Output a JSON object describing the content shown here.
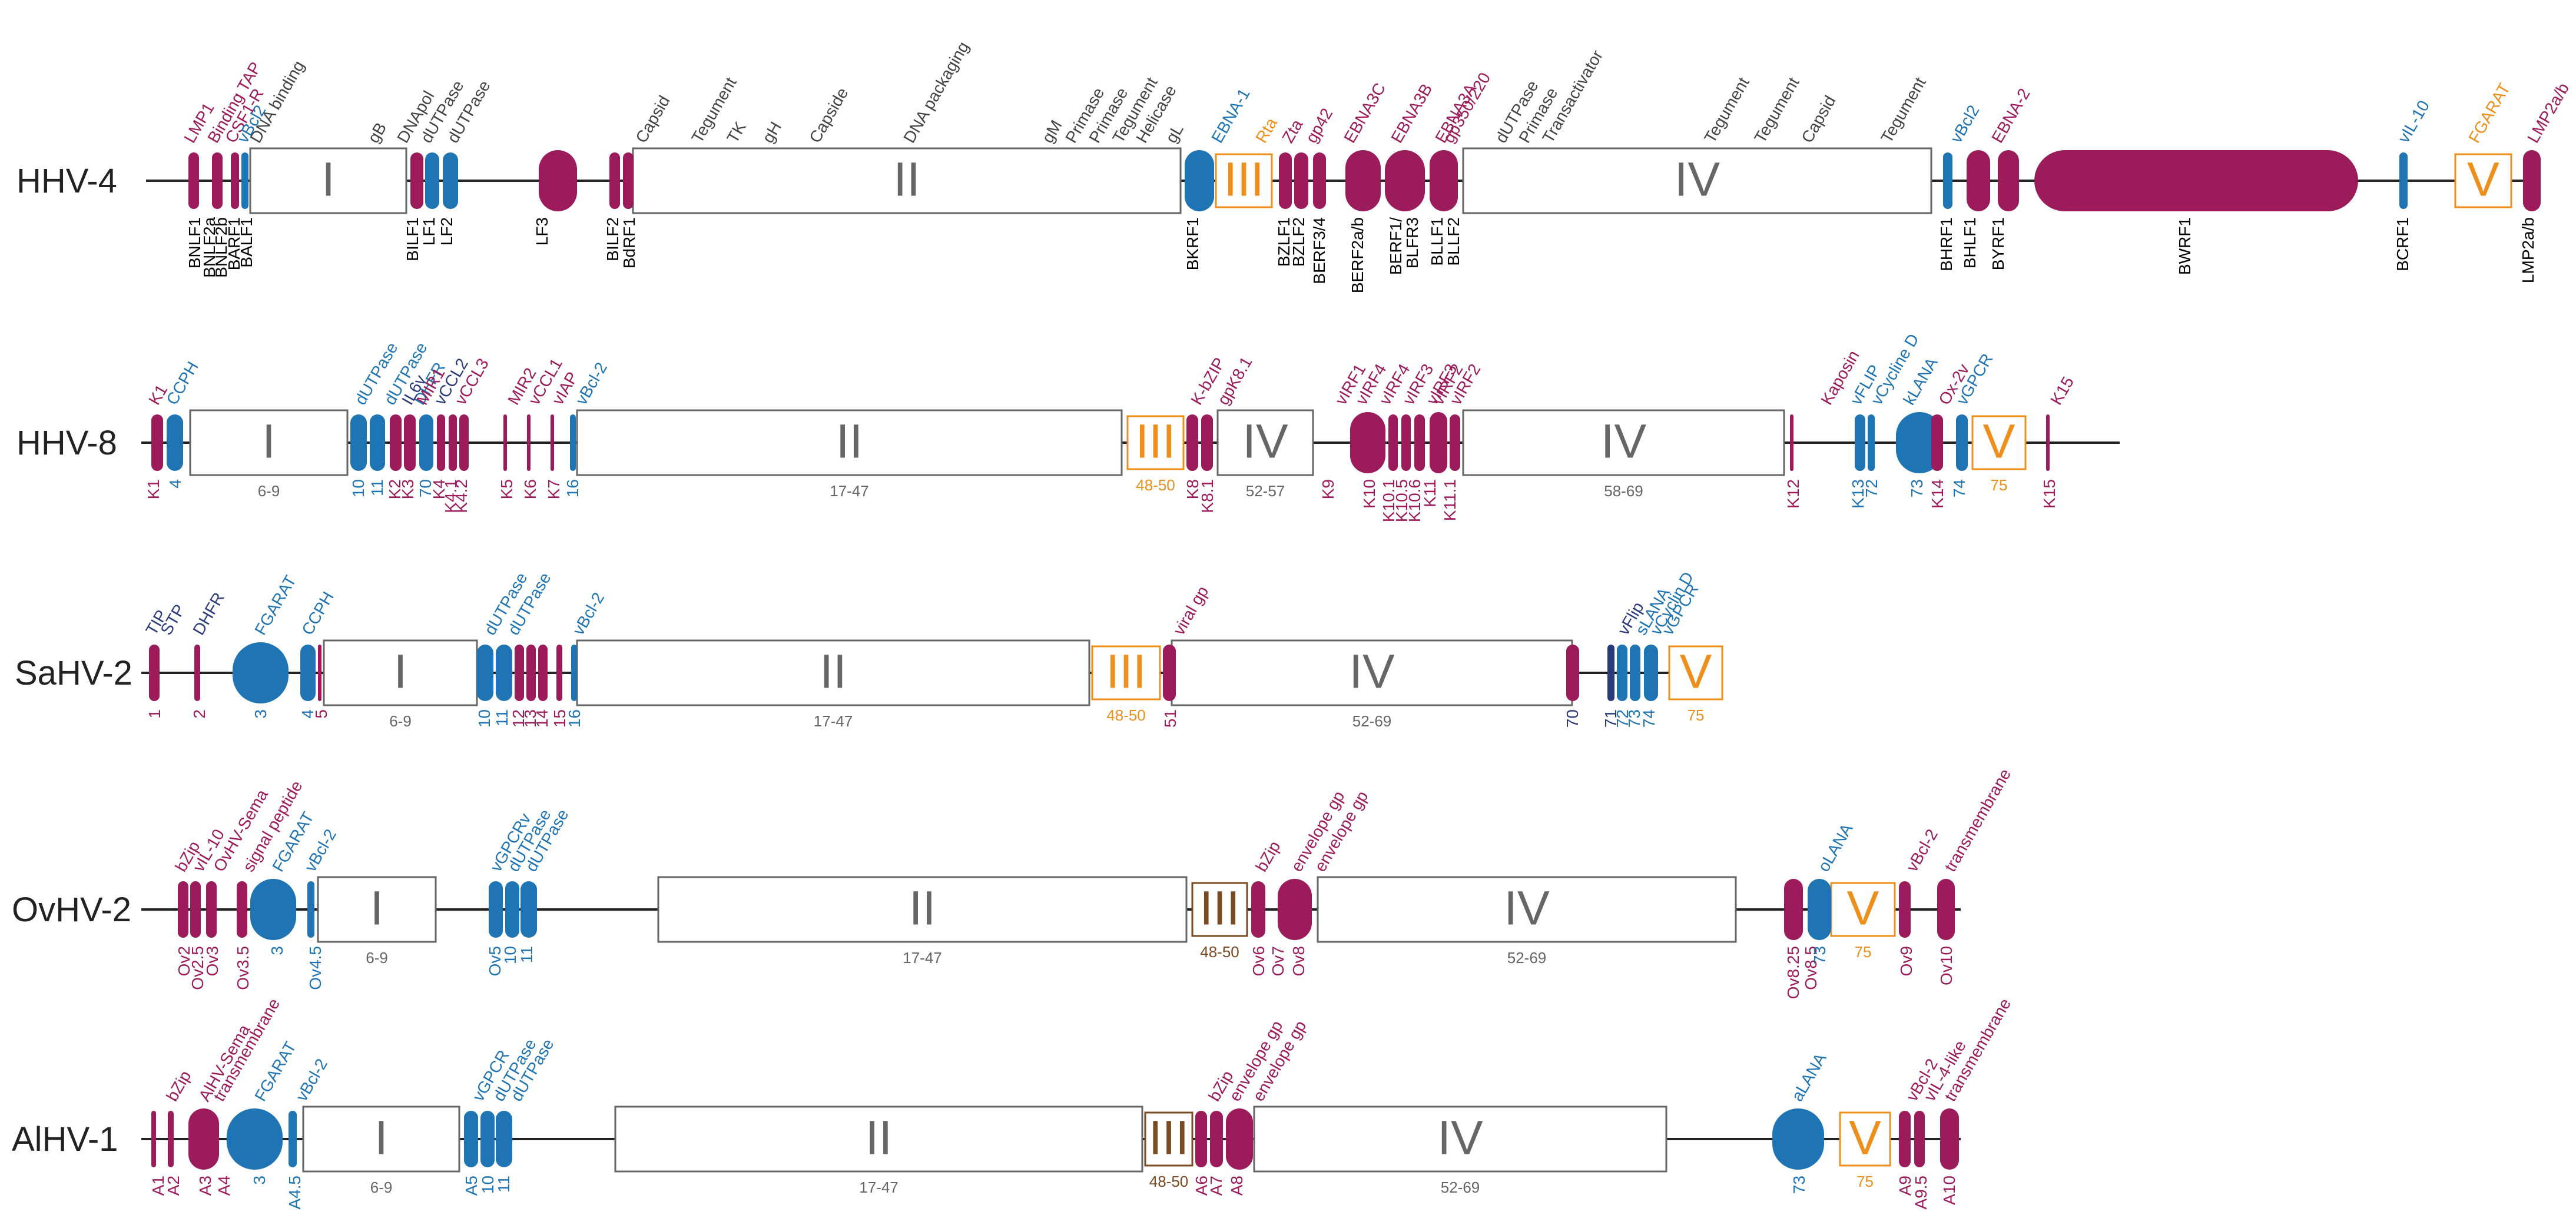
{
  "colors": {
    "magenta": "#9c1b5a",
    "blue": "#1f74b3",
    "orange": "#ee8f1b",
    "brown": "#7a4a22",
    "gray": "#666666",
    "line": "#222222",
    "navy": "#2a3a7a"
  },
  "rows": [
    {
      "name": "HHV-4",
      "blocks": [
        {
          "label": "I",
          "range": ""
        },
        {
          "label": "II",
          "range": ""
        },
        {
          "label": "III",
          "range": ""
        },
        {
          "label": "IV",
          "range": ""
        },
        {
          "label": "V",
          "range": ""
        }
      ],
      "genes_top": [
        "LMP1",
        "Binding TAP",
        "CSF1-R",
        "vBcl2",
        "EBNA-1",
        "Rta",
        "Zta",
        "gp42",
        "EBNA3C",
        "EBNA3B",
        "EBNA3A",
        "gp350/220",
        "vBcl2",
        "EBNA-2",
        "vIL-10",
        "FGARAT",
        "LMP2a/b"
      ],
      "functions": [
        "DNA binding",
        "gB",
        "DNApol",
        "dUTPase",
        "dUTPase",
        "Capsid",
        "Tegument",
        "TK",
        "gH",
        "Capside",
        "DNA packaging",
        "gM",
        "Primase",
        "Primase",
        "Tegument",
        "Helicase",
        "gL",
        "dUTPase",
        "Primase",
        "Transactivator",
        "Tegument",
        "Tegument",
        "Capsid",
        "Tegument"
      ],
      "genes_bottom": [
        "BNLF1",
        "BNLF2a",
        "BNLF2b",
        "BARF1",
        "BALF1",
        "BILF1",
        "LF1",
        "LF2",
        "LF3",
        "BILF2",
        "BdRF1",
        "BKRF1",
        "BZLF1",
        "BZLF2",
        "BERF3/4",
        "BERF2a/b",
        "BERF1/",
        "BLFR3",
        "BLLF1",
        "BLLF2",
        "BHRF1",
        "BHLF1",
        "BYRF1",
        "BWRF1",
        "BCRF1",
        "LMP2a/b"
      ]
    },
    {
      "name": "HHV-8",
      "blocks": [
        {
          "label": "I",
          "range": "6-9"
        },
        {
          "label": "II",
          "range": "17-47"
        },
        {
          "label": "III",
          "range": "48-50"
        },
        {
          "label": "IV",
          "range": "52-57"
        },
        {
          "label": "IV",
          "range": "58-69"
        },
        {
          "label": "V",
          "range": "75"
        }
      ],
      "genes_top": [
        "K1",
        "CCPH",
        "dUTPase",
        "dUTPase",
        "DHFR",
        "IL6v",
        "MIR1",
        "vCCL2",
        "vCCL3",
        "MIR2",
        "vCCL1",
        "vIAP",
        "vBcl-2",
        "K-bZIP",
        "gpK8.1",
        "vIRF1",
        "vIRF4",
        "vIRF4",
        "vIRF3",
        "vIRF3",
        "vIRF2",
        "vIRF2",
        "Kaposin",
        "vFLIP",
        "vCycline D",
        "kLANA",
        "Ox-2v",
        "vGPCR",
        "K15"
      ],
      "genes_bottom": [
        "K1",
        "4",
        "10",
        "11",
        "K2",
        "K3",
        "70",
        "K4",
        "K4.1",
        "K4.2",
        "K5",
        "K6",
        "K7",
        "16",
        "K8",
        "K8.1",
        "K9",
        "K10",
        "K10.1",
        "K10.5",
        "K10.6",
        "K11",
        "K11.1",
        "K12",
        "K13",
        "72",
        "73",
        "K14",
        "74",
        "K15"
      ]
    },
    {
      "name": "SaHV-2",
      "blocks": [
        {
          "label": "I",
          "range": "6-9"
        },
        {
          "label": "II",
          "range": "17-47"
        },
        {
          "label": "III",
          "range": "48-50"
        },
        {
          "label": "IV",
          "range": "52-69"
        },
        {
          "label": "V",
          "range": "75"
        }
      ],
      "genes_top": [
        "TIP",
        "STP",
        "DHFR",
        "FGARAT",
        "CCPH",
        "dUTPase",
        "dUTPase",
        "vBcl-2",
        "viral gp",
        "vFlip",
        "sLANA",
        "vCyclin D",
        "vGPCR"
      ],
      "genes_bottom": [
        "1",
        "2",
        "3",
        "4",
        "5",
        "10",
        "11",
        "12",
        "13",
        "14",
        "15",
        "16",
        "51",
        "70",
        "71",
        "72",
        "73",
        "74"
      ]
    },
    {
      "name": "OvHV-2",
      "blocks": [
        {
          "label": "I",
          "range": "6-9"
        },
        {
          "label": "II",
          "range": "17-47"
        },
        {
          "label": "III",
          "range": "48-50"
        },
        {
          "label": "IV",
          "range": "52-69"
        },
        {
          "label": "V",
          "range": "75"
        }
      ],
      "genes_top": [
        "bZip",
        "vIL-10",
        "OvHV-Sema",
        "signal peptide",
        "FGARAT",
        "vBcl-2",
        "vGPCRv",
        "dUTPase",
        "dUTPase",
        "bZip",
        "envelope gp",
        "envelope gp",
        "oLANA",
        "vBcl-2",
        "transmembrane"
      ],
      "genes_bottom": [
        "Ov2",
        "Ov2.5",
        "Ov3",
        "Ov3.5",
        "3",
        "Ov4.5",
        "Ov5",
        "10",
        "11",
        "Ov6",
        "Ov7",
        "Ov8",
        "Ov8.25",
        "Ov8.5",
        "73",
        "Ov9",
        "Ov10"
      ]
    },
    {
      "name": "AlHV-1",
      "blocks": [
        {
          "label": "I",
          "range": "6-9"
        },
        {
          "label": "II",
          "range": "17-47"
        },
        {
          "label": "III",
          "range": "48-50"
        },
        {
          "label": "IV",
          "range": "52-69"
        },
        {
          "label": "V",
          "range": "75"
        }
      ],
      "genes_top": [
        "bZip",
        "AlHV-Sema",
        "transmembrane",
        "FGARAT",
        "vBcl-2",
        "vGPCR",
        "dUTPase",
        "dUTPase",
        "bZip",
        "envelope gp",
        "envelope gp",
        "aLANA",
        "vBcl-2",
        "vIL-4-like",
        "transmembrane"
      ],
      "genes_bottom": [
        "A1",
        "A2",
        "A3",
        "A4",
        "3",
        "A4.5",
        "A5",
        "10",
        "11",
        "A6",
        "A7",
        "A8",
        "73",
        "A9",
        "A9.5",
        "A10"
      ]
    }
  ]
}
